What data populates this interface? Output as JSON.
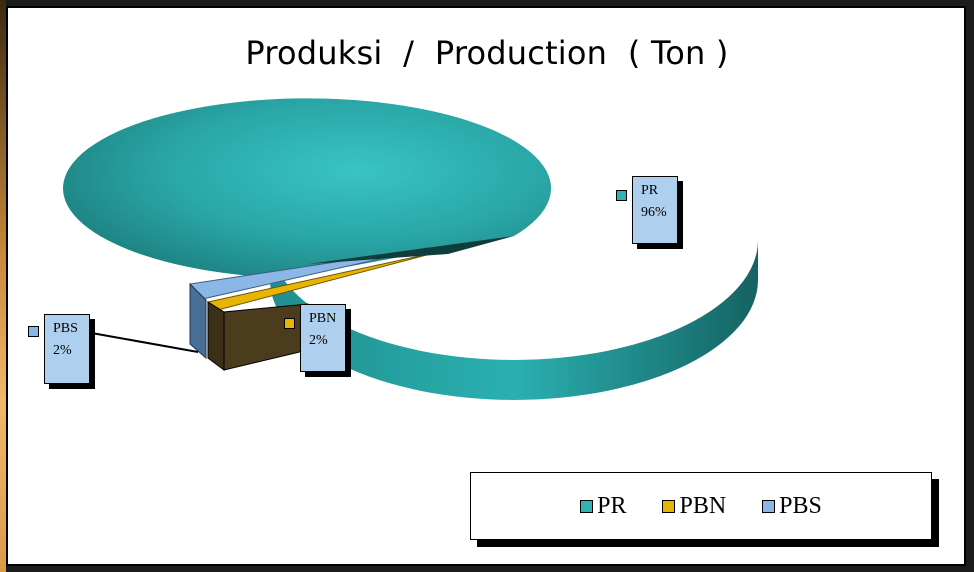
{
  "chart_data": {
    "type": "pie",
    "title": "Produksi  /  Production  ( Ton )",
    "categories": [
      "PR",
      "PBN",
      "PBS"
    ],
    "values": [
      96,
      2,
      2
    ],
    "value_unit": "%",
    "labels": [
      {
        "category": "PR",
        "percent": "96%"
      },
      {
        "category": "PBN",
        "percent": "2%"
      },
      {
        "category": "PBS",
        "percent": "2%"
      }
    ],
    "legend_position": "bottom-right",
    "three_d": true
  },
  "colors": {
    "PR": "#2fb3b3",
    "PBN": "#e8b400",
    "PBS": "#8bb7e6",
    "label_fill": "#aed0ee"
  }
}
